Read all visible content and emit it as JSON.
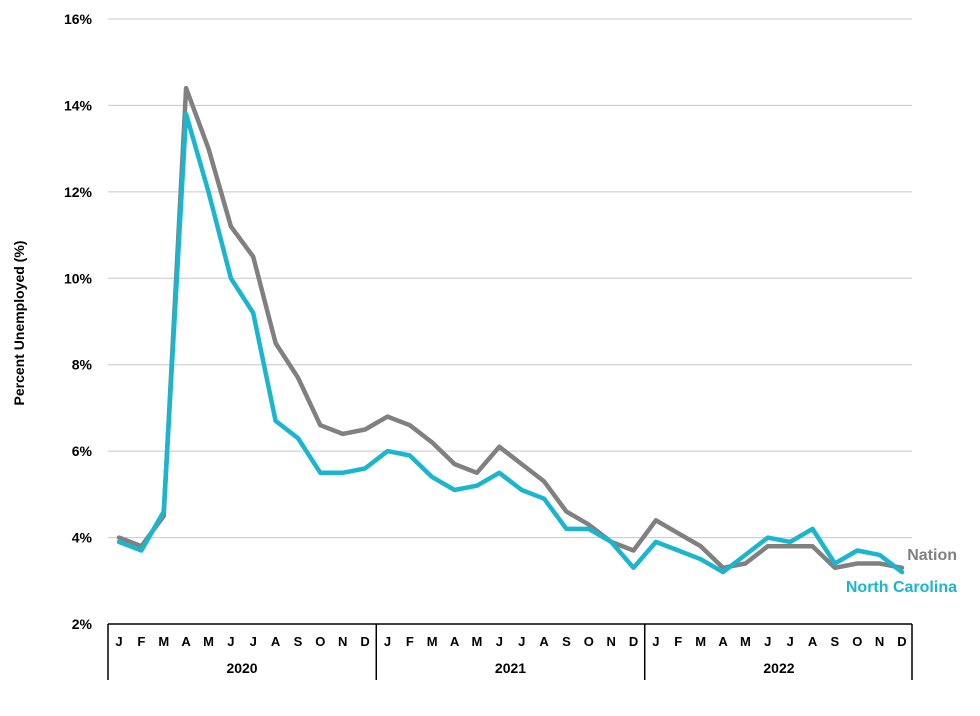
{
  "chart_data": {
    "type": "line",
    "title": "",
    "xlabel": "",
    "ylabel": "Percent Unemployed (%)",
    "ylim": [
      2,
      16
    ],
    "yticks": [
      2,
      4,
      6,
      8,
      10,
      12,
      14,
      16
    ],
    "ytick_labels": [
      "2%",
      "4%",
      "6%",
      "8%",
      "10%",
      "12%",
      "14%",
      "16%"
    ],
    "grid": true,
    "month_labels": [
      "J",
      "F",
      "M",
      "A",
      "M",
      "J",
      "J",
      "A",
      "S",
      "O",
      "N",
      "D",
      "J",
      "F",
      "M",
      "A",
      "M",
      "J",
      "J",
      "A",
      "S",
      "O",
      "N",
      "D",
      "J",
      "F",
      "M",
      "A",
      "M",
      "J",
      "J",
      "A",
      "S",
      "O",
      "N",
      "D"
    ],
    "years": [
      "2020",
      "2021",
      "2022"
    ],
    "series": [
      {
        "name": "Nation",
        "color": "#808080",
        "values": [
          4.0,
          3.8,
          4.5,
          14.4,
          13.0,
          11.2,
          10.5,
          8.5,
          7.7,
          6.6,
          6.4,
          6.5,
          6.8,
          6.6,
          6.2,
          5.7,
          5.5,
          6.1,
          5.7,
          5.3,
          4.6,
          4.3,
          3.9,
          3.7,
          4.4,
          4.1,
          3.8,
          3.3,
          3.4,
          3.8,
          3.8,
          3.8,
          3.3,
          3.4,
          3.4,
          3.3
        ]
      },
      {
        "name": "North Carolina",
        "color": "#1ab6cf",
        "values": [
          3.9,
          3.7,
          4.6,
          13.8,
          12.0,
          10.0,
          9.2,
          6.7,
          6.3,
          5.5,
          5.5,
          5.6,
          6.0,
          5.9,
          5.4,
          5.1,
          5.2,
          5.5,
          5.1,
          4.9,
          4.2,
          4.2,
          3.9,
          3.3,
          3.9,
          3.7,
          3.5,
          3.2,
          3.6,
          4.0,
          3.9,
          4.2,
          3.4,
          3.7,
          3.6,
          3.2
        ]
      }
    ]
  }
}
